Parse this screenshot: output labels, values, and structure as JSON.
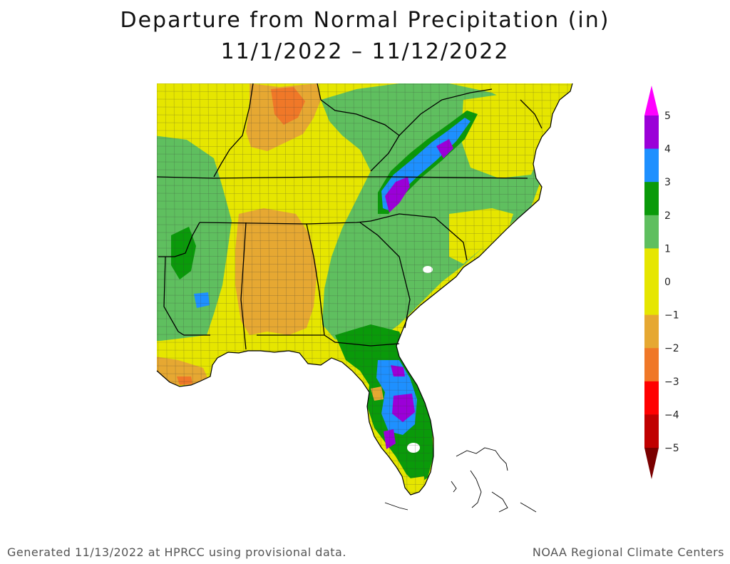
{
  "title": "Departure from Normal Precipitation (in)",
  "date_range": "11/1/2022 – 11/12/2022",
  "footer_left": "Generated 11/13/2022 at HPRCC using provisional data.",
  "footer_right": "NOAA Regional Climate Centers",
  "legend": {
    "labels": [
      "5",
      "4",
      "3",
      "2",
      "1",
      "0",
      "−1",
      "−2",
      "−3",
      "−4",
      "−5"
    ],
    "colors": [
      "#ff00ff",
      "#9b00d8",
      "#1e90ff",
      "#0a9a0a",
      "#5fbf5f",
      "#e6e600",
      "#e6a832",
      "#f07828",
      "#ff0000",
      "#c00000",
      "#7a0000"
    ]
  }
}
